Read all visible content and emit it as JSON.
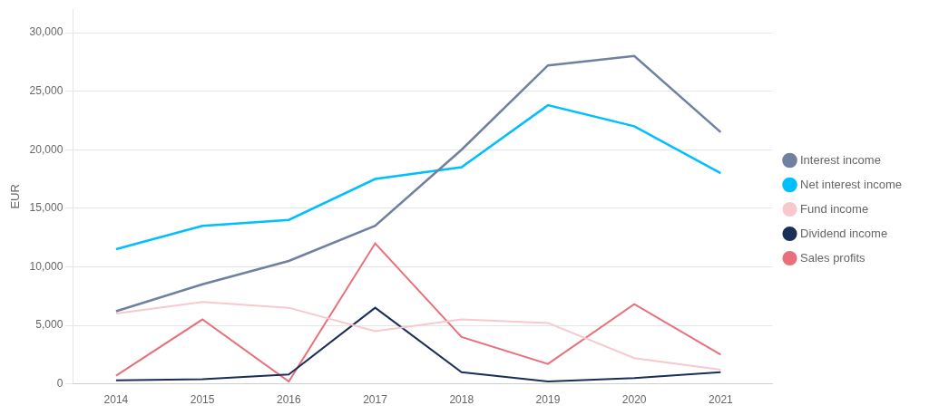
{
  "chart_data": {
    "type": "line",
    "ylabel": "EUR",
    "x": [
      2014,
      2015,
      2016,
      2017,
      2018,
      2019,
      2020,
      2021
    ],
    "xlim": [
      2013.5,
      2021.6
    ],
    "xticks": [
      2014,
      2015,
      2016,
      2017,
      2018,
      2019,
      2020,
      2021
    ],
    "ylim": [
      0,
      32000
    ],
    "yticks": [
      0,
      {
        "value": 5000,
        "label": "5,000"
      },
      {
        "value": 10000,
        "label": "10,000"
      },
      {
        "value": 15000,
        "label": "15,000"
      },
      {
        "value": 20000,
        "label": "20,000"
      },
      {
        "value": 25000,
        "label": "25,000"
      },
      {
        "value": 30000,
        "label": "30,000"
      }
    ],
    "grid": "y",
    "legend": "right",
    "series": [
      {
        "name": "Interest income",
        "color": "#7080a0",
        "values": [
          6200,
          8500,
          10500,
          13500,
          20000,
          27200,
          28000,
          21500
        ]
      },
      {
        "name": "Net interest income",
        "color": "#00bfff",
        "values": [
          11500,
          13500,
          14000,
          17500,
          18500,
          23800,
          22000,
          18000
        ]
      },
      {
        "name": "Fund income",
        "color": "#f8c8ce",
        "values": [
          6000,
          7000,
          6500,
          4500,
          5500,
          5200,
          2200,
          1200
        ]
      },
      {
        "name": "Dividend income",
        "color": "#1a2f58",
        "values": [
          300,
          400,
          800,
          6500,
          1000,
          200,
          500,
          1000
        ]
      },
      {
        "name": "Sales profits",
        "color": "#e8707a",
        "values": [
          700,
          5500,
          200,
          12000,
          4000,
          1700,
          6800,
          2500
        ]
      }
    ]
  }
}
